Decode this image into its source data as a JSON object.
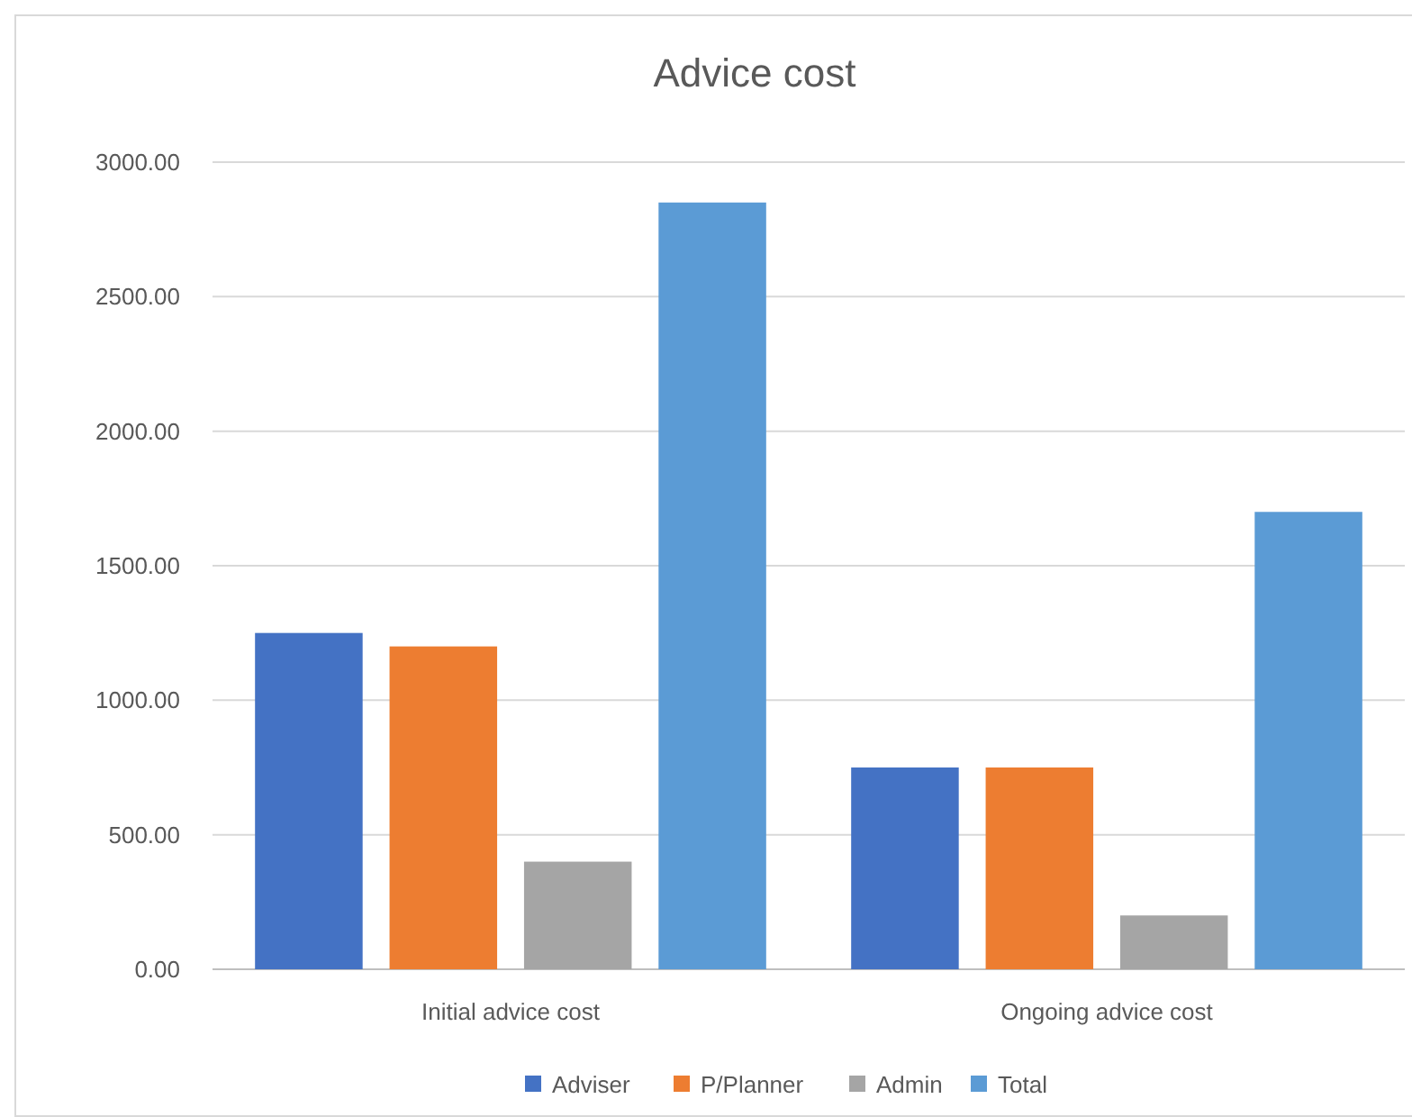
{
  "chart_data": {
    "type": "bar",
    "title": "Advice cost",
    "categories": [
      "Initial advice cost",
      "Ongoing advice cost"
    ],
    "series": [
      {
        "name": "Adviser",
        "color": "#4472c4",
        "values": [
          1250,
          750
        ]
      },
      {
        "name": "P/Planner",
        "color": "#ed7d31",
        "values": [
          1200,
          750
        ]
      },
      {
        "name": "Admin",
        "color": "#a5a5a5",
        "values": [
          400,
          200
        ]
      },
      {
        "name": "Total",
        "color": "#5b9bd5",
        "values": [
          2850,
          1700
        ]
      }
    ],
    "ylim": [
      0,
      3000
    ],
    "yticks": [
      {
        "value": 0,
        "label": "0.00"
      },
      {
        "value": 500,
        "label": "500.00"
      },
      {
        "value": 1000,
        "label": "1000.00"
      },
      {
        "value": 1500,
        "label": "1500.00"
      },
      {
        "value": 2000,
        "label": "2000.00"
      },
      {
        "value": 2500,
        "label": "2500.00"
      },
      {
        "value": 3000,
        "label": "3000.00"
      }
    ],
    "grid": "y",
    "legend": "bottom"
  }
}
